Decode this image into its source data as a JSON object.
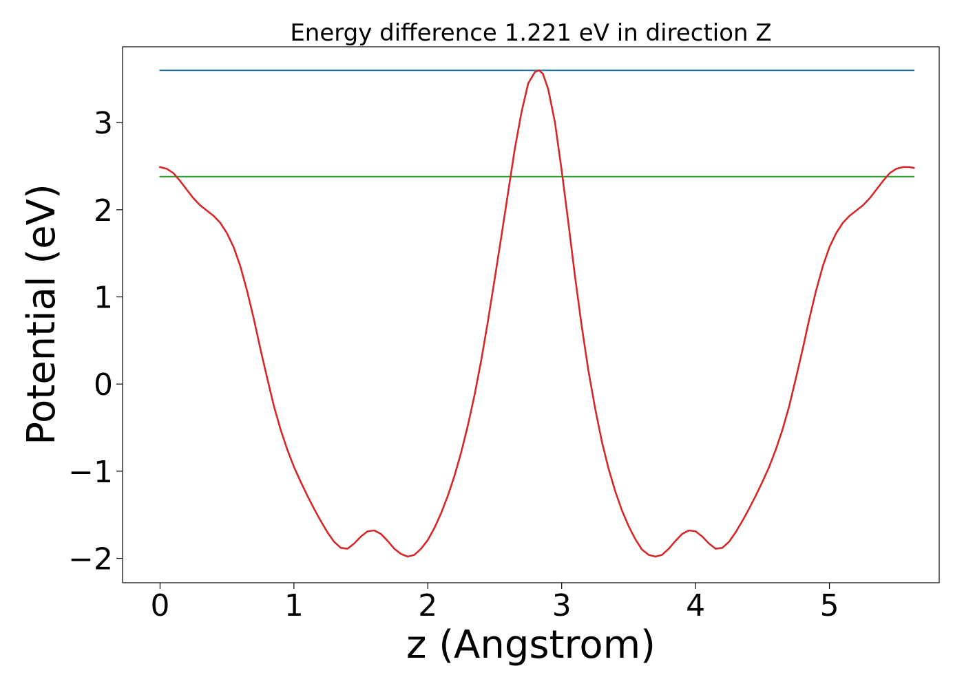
{
  "chart_data": {
    "type": "line",
    "title": "Energy difference 1.221 eV in direction Z",
    "xlabel": "z (Angstrom)",
    "ylabel": "Potential (eV)",
    "xlim": [
      -0.28,
      5.82
    ],
    "ylim": [
      -2.28,
      3.87
    ],
    "xticks": [
      0,
      1,
      2,
      3,
      4,
      5
    ],
    "xtick_labels": [
      "0",
      "1",
      "2",
      "3",
      "4",
      "5"
    ],
    "yticks": [
      -2,
      -1,
      0,
      1,
      2,
      3
    ],
    "ytick_labels": [
      "−2",
      "−1",
      "0",
      "1",
      "2",
      "3"
    ],
    "grid": false,
    "series": [
      {
        "color": "#d62728",
        "x": [
          0.0,
          0.05,
          0.1,
          0.15,
          0.2,
          0.25,
          0.3,
          0.35,
          0.4,
          0.45,
          0.5,
          0.55,
          0.6,
          0.65,
          0.7,
          0.75,
          0.8,
          0.85,
          0.9,
          0.95,
          1.0,
          1.05,
          1.1,
          1.15,
          1.2,
          1.25,
          1.3,
          1.35,
          1.4,
          1.45,
          1.5,
          1.55,
          1.6,
          1.65,
          1.7,
          1.75,
          1.8,
          1.85,
          1.9,
          1.95,
          2.0,
          2.05,
          2.1,
          2.15,
          2.2,
          2.25,
          2.3,
          2.35,
          2.4,
          2.45,
          2.5,
          2.55,
          2.6,
          2.65,
          2.7,
          2.75,
          2.8,
          2.83,
          2.86,
          2.9,
          2.95,
          3.0,
          3.05,
          3.1,
          3.15,
          3.2,
          3.25,
          3.3,
          3.35,
          3.4,
          3.45,
          3.5,
          3.55,
          3.6,
          3.65,
          3.7,
          3.75,
          3.8,
          3.85,
          3.9,
          3.95,
          4.0,
          4.05,
          4.1,
          4.15,
          4.2,
          4.25,
          4.3,
          4.35,
          4.4,
          4.45,
          4.5,
          4.55,
          4.6,
          4.65,
          4.7,
          4.75,
          4.8,
          4.85,
          4.9,
          4.95,
          5.0,
          5.05,
          5.1,
          5.15,
          5.2,
          5.25,
          5.3,
          5.35,
          5.4,
          5.45,
          5.5,
          5.55,
          5.6,
          5.63
        ],
        "y": [
          2.49,
          2.47,
          2.42,
          2.33,
          2.23,
          2.13,
          2.05,
          1.99,
          1.93,
          1.85,
          1.73,
          1.57,
          1.35,
          1.07,
          0.75,
          0.4,
          0.07,
          -0.25,
          -0.52,
          -0.75,
          -0.95,
          -1.12,
          -1.28,
          -1.43,
          -1.57,
          -1.7,
          -1.81,
          -1.88,
          -1.89,
          -1.83,
          -1.75,
          -1.69,
          -1.68,
          -1.72,
          -1.8,
          -1.89,
          -1.95,
          -1.98,
          -1.96,
          -1.89,
          -1.79,
          -1.65,
          -1.48,
          -1.28,
          -1.05,
          -0.78,
          -0.47,
          -0.12,
          0.28,
          0.73,
          1.21,
          1.7,
          2.2,
          2.7,
          3.12,
          3.45,
          3.58,
          3.6,
          3.56,
          3.38,
          3.0,
          2.45,
          1.85,
          1.23,
          0.66,
          0.15,
          -0.28,
          -0.66,
          -0.97,
          -1.23,
          -1.45,
          -1.63,
          -1.78,
          -1.9,
          -1.96,
          -1.98,
          -1.96,
          -1.89,
          -1.8,
          -1.72,
          -1.68,
          -1.69,
          -1.75,
          -1.83,
          -1.89,
          -1.88,
          -1.81,
          -1.7,
          -1.57,
          -1.43,
          -1.28,
          -1.12,
          -0.95,
          -0.75,
          -0.52,
          -0.25,
          0.07,
          0.4,
          0.75,
          1.07,
          1.35,
          1.57,
          1.73,
          1.85,
          1.93,
          1.99,
          2.05,
          2.13,
          2.23,
          2.33,
          2.42,
          2.47,
          2.49,
          2.49,
          2.48
        ]
      },
      {
        "color": "#1f77b4",
        "x": [
          0,
          5.63
        ],
        "y": [
          3.6,
          3.6
        ]
      },
      {
        "color": "#2ca02c",
        "x": [
          0,
          5.63
        ],
        "y": [
          2.38,
          2.38
        ]
      }
    ]
  }
}
